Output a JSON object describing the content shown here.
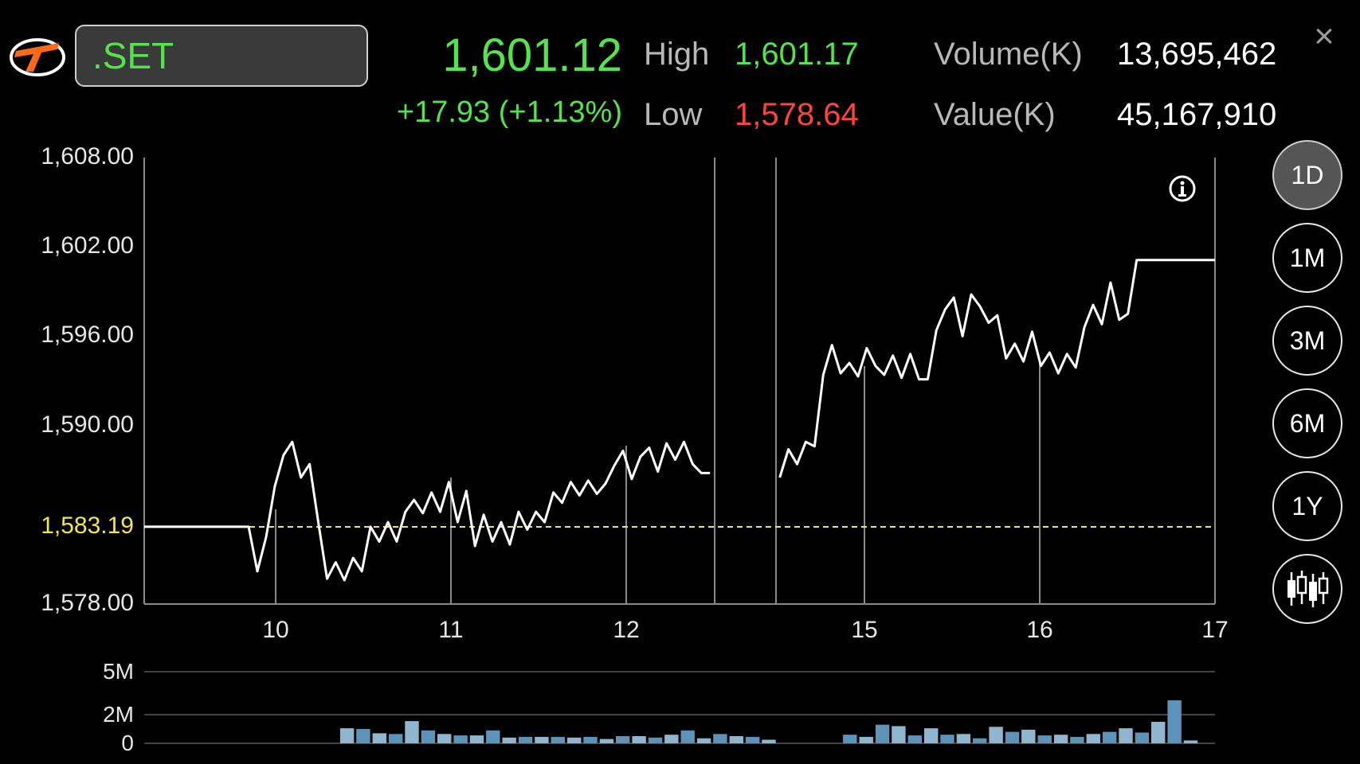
{
  "header": {
    "symbol": ".SET",
    "last_price": "1,601.12",
    "change": "+17.93 (+1.13%)",
    "high_label": "High",
    "high_value": "1,601.17",
    "low_label": "Low",
    "low_value": "1,578.64",
    "volume_label": "Volume(K)",
    "volume_value": "13,695,462",
    "value_label": "Value(K)",
    "value_value": "45,167,910",
    "close_symbol": "×"
  },
  "colors": {
    "up": "#54e34b",
    "down": "#ff453a",
    "line": "#ffffff",
    "reference": "#f3e64a",
    "volume_bar": "#5d93b8",
    "volume_bar_light": "#8fb6cf"
  },
  "timeframes": [
    {
      "label": "1D",
      "active": true
    },
    {
      "label": "1M",
      "active": false
    },
    {
      "label": "3M",
      "active": false
    },
    {
      "label": "6M",
      "active": false
    },
    {
      "label": "1Y",
      "active": false
    }
  ],
  "icons": {
    "info": "info-icon",
    "chart_type": "candlestick-icon",
    "logo": "broker-logo"
  },
  "chart_data": {
    "type": "line",
    "title": "",
    "ylim": [
      1578,
      1608
    ],
    "y_ticks": [
      "1,608.00",
      "1,602.00",
      "1,596.00",
      "1,590.00",
      "1,578.00"
    ],
    "y_tick_values": [
      1608,
      1602,
      1596,
      1590,
      1578
    ],
    "reference_label": "1,583.19",
    "reference_value": 1583.19,
    "x_ticks": [
      "10",
      "11",
      "12",
      "15",
      "16",
      "17"
    ],
    "series": [
      {
        "values": [
          1583.19,
          1583.19,
          1583.19,
          1583.19,
          1583.19,
          1583.19,
          1583.19,
          1583.19,
          1583.19,
          1583.19,
          1583.19,
          1583.19,
          1583.19,
          1580.2,
          1582.5,
          1585.9,
          1588.0,
          1588.9,
          1586.5,
          1587.4,
          1583.5,
          1579.7,
          1580.8,
          1579.6,
          1581.1,
          1580.2,
          1583.19,
          1582.2,
          1583.5,
          1582.2,
          1584.2,
          1585.0,
          1584.1,
          1585.5,
          1584.2,
          1586.2,
          1583.5,
          1585.6,
          1581.9,
          1584.0,
          1582.2,
          1583.5,
          1582.0,
          1584.2,
          1583.0,
          1584.2,
          1583.5,
          1585.5,
          1584.8,
          1586.2,
          1585.3,
          1586.3,
          1585.4,
          1586.1,
          1587.3,
          1588.3,
          1586.4,
          1587.9,
          1588.5,
          1586.9,
          1588.8,
          1587.7,
          1588.9,
          1587.4,
          1586.8,
          1586.8,
          null,
          null,
          null,
          null,
          null,
          null,
          null,
          1586.5,
          1588.4,
          1587.4,
          1588.9,
          1588.6,
          1593.4,
          1595.4,
          1593.5,
          1594.2,
          1593.3,
          1595.2,
          1594.0,
          1593.4,
          1594.7,
          1593.2,
          1594.8,
          1593.1,
          1593.1,
          1596.4,
          1597.8,
          1598.6,
          1596.0,
          1598.8,
          1598.0,
          1596.9,
          1597.4,
          1594.5,
          1595.5,
          1594.3,
          1596.3,
          1594.0,
          1594.9,
          1593.5,
          1594.8,
          1593.9,
          1596.6,
          1598.1,
          1596.8,
          1599.6,
          1597.1,
          1597.5,
          1601.12,
          1601.12,
          1601.12,
          1601.12,
          1601.12,
          1601.12,
          1601.12,
          1601.12,
          1601.12,
          1601.12
        ]
      }
    ],
    "volume": {
      "ylim": [
        0,
        5
      ],
      "y_ticks": [
        "5M",
        "2M",
        "0"
      ],
      "y_tick_values": [
        5,
        2,
        0
      ],
      "bars": [
        0,
        0,
        0,
        0,
        0,
        0,
        0,
        0,
        0,
        0,
        0,
        0,
        1.05,
        1.0,
        0.7,
        0.65,
        1.55,
        0.9,
        0.65,
        0.55,
        0.55,
        0.9,
        0.4,
        0.45,
        0.45,
        0.45,
        0.4,
        0.45,
        0.3,
        0.5,
        0.5,
        0.4,
        0.6,
        0.9,
        0.35,
        0.65,
        0.5,
        0.45,
        0.25,
        0,
        0,
        0,
        0,
        0.6,
        0.45,
        1.3,
        1.2,
        0.55,
        1.05,
        0.6,
        0.65,
        0.35,
        1.15,
        0.8,
        0.95,
        0.55,
        0.6,
        0.45,
        0.65,
        0.8,
        1.05,
        0.75,
        1.5,
        3.0,
        0.2,
        0
      ]
    }
  }
}
